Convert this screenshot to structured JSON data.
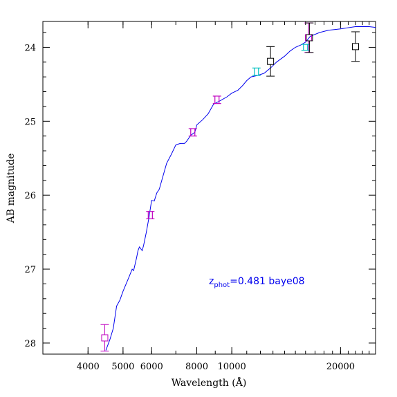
{
  "chart_data": {
    "type": "scatter",
    "xlabel": "Wavelength (Å)",
    "ylabel": "AB magnitude",
    "xscale": "log",
    "xlim": [
      3000,
      25000
    ],
    "ylim": [
      28.15,
      23.65
    ],
    "y_inverted": true,
    "grid": false,
    "x_ticks": [
      {
        "value": 4000,
        "label": "4000"
      },
      {
        "value": 5000,
        "label": "5000"
      },
      {
        "value": 6000,
        "label": "6000"
      },
      {
        "value": 8000,
        "label": "8000"
      },
      {
        "value": 10000,
        "label": "10000"
      },
      {
        "value": 20000,
        "label": "20000"
      }
    ],
    "y_ticks": [
      {
        "value": 24,
        "label": "24"
      },
      {
        "value": 25,
        "label": "25"
      },
      {
        "value": 26,
        "label": "26"
      },
      {
        "value": 27,
        "label": "27"
      },
      {
        "value": 28,
        "label": "28"
      }
    ],
    "annotation": {
      "prefix": "z",
      "subscript": "phot",
      "text": "=0.481 baye08"
    },
    "colors": {
      "magenta": "#c000c0",
      "cyan": "#00c0c0",
      "black": "#000000",
      "blue": "#0000ee"
    },
    "series": [
      {
        "type": "squares",
        "color": "#c000c0",
        "points": [
          {
            "x": 4450,
            "y": 27.93,
            "yerr": 0.18
          },
          {
            "x": 16300,
            "y": 23.87,
            "yerr": 0.2
          }
        ]
      },
      {
        "type": "double_bars",
        "color": "#c000c0",
        "points": [
          {
            "x": 5950,
            "y": 26.27,
            "yerr": 0.05
          },
          {
            "x": 7800,
            "y": 25.15,
            "yerr": 0.05
          },
          {
            "x": 9100,
            "y": 24.71,
            "yerr": 0.05
          }
        ]
      },
      {
        "type": "double_bars",
        "color": "#00c0c0",
        "points": [
          {
            "x": 11700,
            "y": 24.33,
            "yerr": 0.05
          },
          {
            "x": 16000,
            "y": 24.0,
            "yerr": 0.04
          }
        ]
      },
      {
        "type": "squares",
        "color": "#000000",
        "points": [
          {
            "x": 12800,
            "y": 24.19,
            "yerr": 0.2
          },
          {
            "x": 16400,
            "y": 23.87,
            "yerr": 0.2
          },
          {
            "x": 22000,
            "y": 23.99,
            "yerr": 0.2
          }
        ]
      },
      {
        "type": "line",
        "color": "#0000ee",
        "points": [
          [
            4480,
            28.1
          ],
          [
            4600,
            27.95
          ],
          [
            4700,
            27.8
          ],
          [
            4800,
            27.5
          ],
          [
            4900,
            27.42
          ],
          [
            5000,
            27.3
          ],
          [
            5200,
            27.1
          ],
          [
            5300,
            27.0
          ],
          [
            5350,
            27.02
          ],
          [
            5450,
            26.85
          ],
          [
            5500,
            26.75
          ],
          [
            5550,
            26.7
          ],
          [
            5650,
            26.75
          ],
          [
            5700,
            26.68
          ],
          [
            5800,
            26.5
          ],
          [
            5900,
            26.3
          ],
          [
            6000,
            26.07
          ],
          [
            6100,
            26.08
          ],
          [
            6200,
            25.97
          ],
          [
            6300,
            25.92
          ],
          [
            6400,
            25.8
          ],
          [
            6600,
            25.57
          ],
          [
            6800,
            25.45
          ],
          [
            7000,
            25.32
          ],
          [
            7200,
            25.3
          ],
          [
            7400,
            25.3
          ],
          [
            7500,
            25.27
          ],
          [
            7700,
            25.19
          ],
          [
            7900,
            25.15
          ],
          [
            8000,
            25.05
          ],
          [
            8300,
            24.98
          ],
          [
            8600,
            24.9
          ],
          [
            8900,
            24.77
          ],
          [
            9300,
            24.72
          ],
          [
            9700,
            24.67
          ],
          [
            10000,
            24.62
          ],
          [
            10400,
            24.58
          ],
          [
            10700,
            24.52
          ],
          [
            11000,
            24.45
          ],
          [
            11300,
            24.4
          ],
          [
            11800,
            24.38
          ],
          [
            12300,
            24.35
          ],
          [
            12800,
            24.28
          ],
          [
            13300,
            24.2
          ],
          [
            14000,
            24.12
          ],
          [
            14500,
            24.05
          ],
          [
            15000,
            24.0
          ],
          [
            15500,
            23.97
          ],
          [
            16000,
            23.93
          ],
          [
            16500,
            23.85
          ],
          [
            17500,
            23.8
          ],
          [
            18500,
            23.77
          ],
          [
            20000,
            23.75
          ],
          [
            22000,
            23.72
          ],
          [
            23000,
            23.72
          ],
          [
            24000,
            23.72
          ],
          [
            25000,
            23.73
          ]
        ]
      }
    ]
  }
}
